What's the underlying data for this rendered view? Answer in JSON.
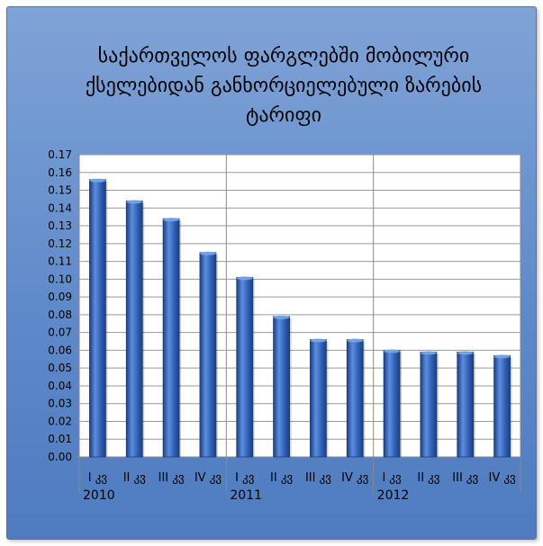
{
  "chart_data": {
    "type": "bar",
    "title": "საქართველოს ფარგლებში მობილური ქსელებიდან განხორციელებული ზარების ტარიფი",
    "xlabel": "",
    "ylabel": "",
    "ylim": [
      0,
      0.17
    ],
    "yticks": [
      "0.00",
      "0.01",
      "0.02",
      "0.03",
      "0.04",
      "0.05",
      "0.06",
      "0.07",
      "0.08",
      "0.09",
      "0.10",
      "0.11",
      "0.12",
      "0.13",
      "0.14",
      "0.15",
      "0.16",
      "0.17"
    ],
    "categories": [
      "I კვ",
      "II კვ",
      "III კვ",
      "IV კვ",
      "I კვ",
      "II კვ",
      "III კვ",
      "IV კვ",
      "I კვ",
      "II კვ",
      "III კვ",
      "IV კვ"
    ],
    "years": [
      "2010",
      "2011",
      "2012"
    ],
    "values": [
      0.156,
      0.144,
      0.134,
      0.115,
      0.101,
      0.079,
      0.066,
      0.066,
      0.06,
      0.059,
      0.059,
      0.057
    ],
    "grid": true,
    "colors": {
      "bar_top": "#5b8ee0",
      "bar_mid": "#2f5fb3",
      "bar_bottom": "#1d3f80",
      "plot_bg": "#ffffff",
      "frame": "#6a93d0"
    }
  }
}
